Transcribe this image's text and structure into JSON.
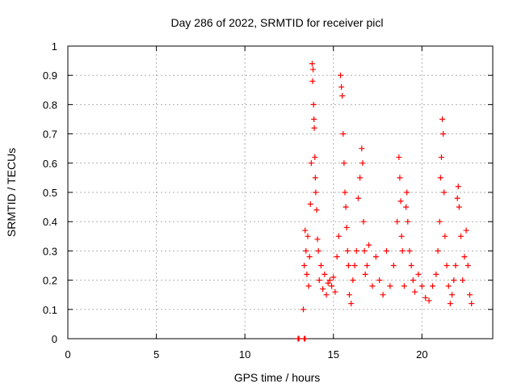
{
  "chart_data": {
    "type": "scatter",
    "title": "Day 286 of 2022, SRMTID for receiver picl",
    "xlabel": "GPS time / hours",
    "ylabel": "SRMTID / TECUs",
    "xlim": [
      0,
      24
    ],
    "ylim": [
      0,
      1
    ],
    "xticks": [
      0,
      5,
      10,
      15,
      20
    ],
    "xtick_labels": [
      "0",
      "5",
      "10",
      "15",
      "20"
    ],
    "yticks": [
      0,
      0.1,
      0.2,
      0.3,
      0.4,
      0.5,
      0.6,
      0.7,
      0.8,
      0.9,
      1
    ],
    "ytick_labels": [
      "0",
      "0.1",
      "0.2",
      "0.3",
      "0.4",
      "0.5",
      "0.6",
      "0.7",
      "0.8",
      "0.9",
      "1"
    ],
    "grid": true,
    "marker": "+",
    "color": "#ff0000",
    "series": [
      {
        "name": "SRMTID",
        "x": [
          13.0,
          13.05,
          13.35,
          13.4,
          13.3,
          13.35,
          13.4,
          13.45,
          13.5,
          13.55,
          13.6,
          13.65,
          13.7,
          13.75,
          13.8,
          13.82,
          13.85,
          13.88,
          13.9,
          13.92,
          13.95,
          13.98,
          14.0,
          14.05,
          14.1,
          14.15,
          14.2,
          14.3,
          14.4,
          14.5,
          14.6,
          14.7,
          14.8,
          14.9,
          15.0,
          15.1,
          15.2,
          15.3,
          15.4,
          15.45,
          15.5,
          15.55,
          15.6,
          15.65,
          15.7,
          15.75,
          15.8,
          15.85,
          15.9,
          16.0,
          16.1,
          16.2,
          16.3,
          16.4,
          16.5,
          16.6,
          16.65,
          16.7,
          16.75,
          16.8,
          16.9,
          17.0,
          17.2,
          17.4,
          17.6,
          17.8,
          18.0,
          18.2,
          18.4,
          18.6,
          18.7,
          18.75,
          18.8,
          18.85,
          18.9,
          19.0,
          19.1,
          19.15,
          19.2,
          19.3,
          19.4,
          19.5,
          19.6,
          19.8,
          20.0,
          20.2,
          20.4,
          20.6,
          20.8,
          20.9,
          21.0,
          21.05,
          21.1,
          21.15,
          21.2,
          21.25,
          21.3,
          21.4,
          21.5,
          21.6,
          21.7,
          21.8,
          21.9,
          22.0,
          22.05,
          22.1,
          22.2,
          22.3,
          22.4,
          22.5,
          22.6,
          22.7,
          22.8
        ],
        "y": [
          0.0,
          0.0,
          0.0,
          0.0,
          0.1,
          0.25,
          0.37,
          0.3,
          0.22,
          0.35,
          0.18,
          0.28,
          0.46,
          0.6,
          0.94,
          0.88,
          0.92,
          0.8,
          0.75,
          0.72,
          0.62,
          0.55,
          0.5,
          0.44,
          0.34,
          0.3,
          0.2,
          0.25,
          0.17,
          0.22,
          0.15,
          0.19,
          0.2,
          0.18,
          0.21,
          0.16,
          0.28,
          0.35,
          0.9,
          0.86,
          0.83,
          0.7,
          0.6,
          0.5,
          0.45,
          0.38,
          0.3,
          0.25,
          0.15,
          0.12,
          0.2,
          0.25,
          0.3,
          0.48,
          0.55,
          0.65,
          0.6,
          0.4,
          0.3,
          0.22,
          0.25,
          0.32,
          0.18,
          0.28,
          0.2,
          0.15,
          0.3,
          0.18,
          0.25,
          0.4,
          0.62,
          0.55,
          0.47,
          0.35,
          0.3,
          0.18,
          0.45,
          0.5,
          0.4,
          0.3,
          0.25,
          0.2,
          0.16,
          0.22,
          0.18,
          0.14,
          0.13,
          0.18,
          0.22,
          0.3,
          0.4,
          0.55,
          0.62,
          0.75,
          0.7,
          0.5,
          0.35,
          0.25,
          0.18,
          0.12,
          0.15,
          0.2,
          0.25,
          0.48,
          0.52,
          0.45,
          0.35,
          0.2,
          0.28,
          0.37,
          0.25,
          0.15,
          0.12
        ]
      }
    ]
  }
}
